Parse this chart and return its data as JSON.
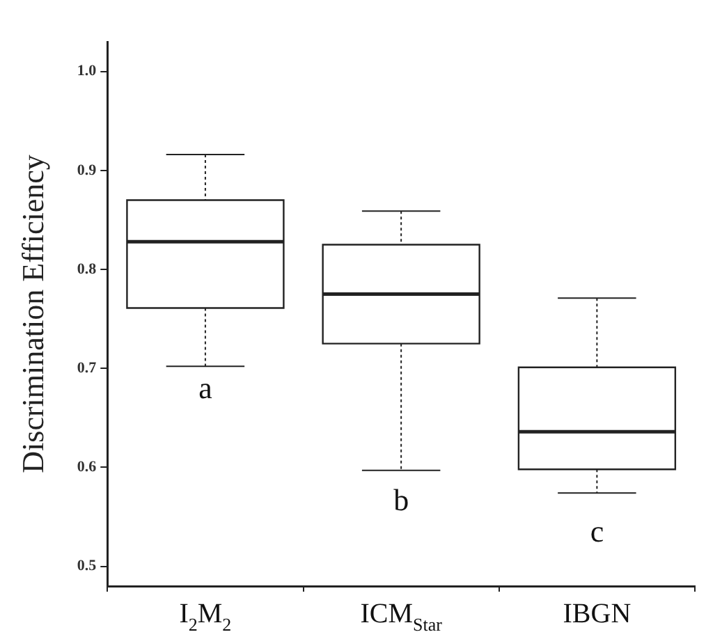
{
  "chart_data": {
    "type": "box",
    "ylabel": "Discrimination Efficiency",
    "categories": [
      "I$_{2}$M$_{2}$",
      "ICM$_{Star}$",
      "IBGN"
    ],
    "boxes": [
      {
        "low": 0.702,
        "q1": 0.761,
        "median": 0.828,
        "q3": 0.87,
        "high": 0.916
      },
      {
        "low": 0.597,
        "q1": 0.725,
        "median": 0.775,
        "q3": 0.825,
        "high": 0.859
      },
      {
        "low": 0.574,
        "q1": 0.598,
        "median": 0.636,
        "q3": 0.701,
        "high": 0.771
      }
    ],
    "ylim": [
      0.48,
      1.03
    ],
    "yticks": [
      0.5,
      0.6,
      0.7,
      0.8,
      0.9,
      {
        "value": 1,
        "label": "1.0"
      }
    ],
    "grid": false,
    "annotations": [
      "a",
      "b",
      "c"
    ]
  }
}
